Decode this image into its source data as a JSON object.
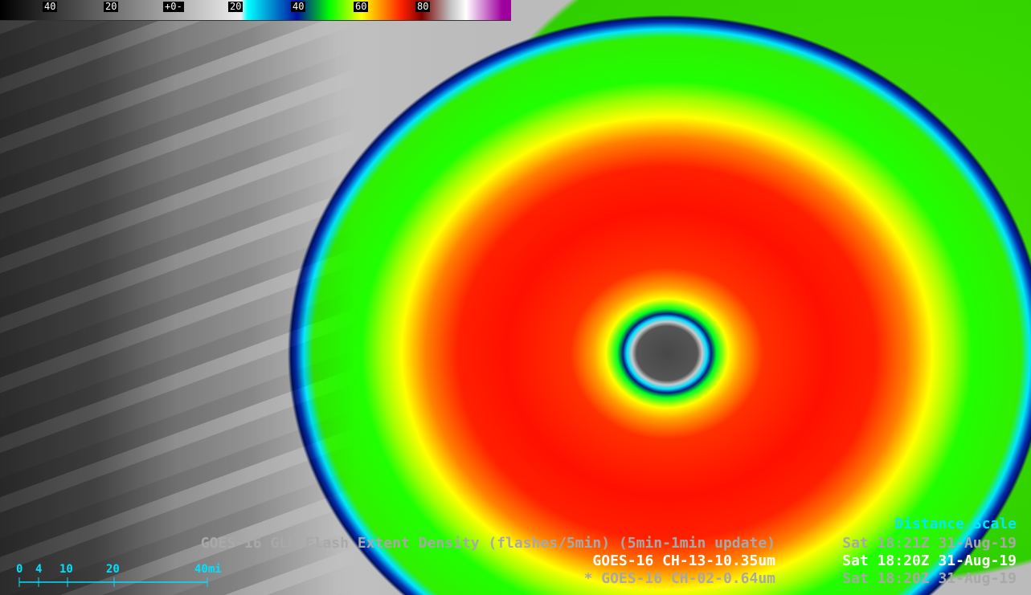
{
  "colorbar": {
    "labels": [
      "40",
      "20",
      "+0-",
      "20",
      "40",
      "60",
      "80"
    ]
  },
  "distance_scale": {
    "title": "Distance Scale",
    "labels": [
      "0",
      "4",
      "10",
      "20",
      "40mi"
    ]
  },
  "captions": [
    {
      "product": "GOES-16 GLM Flash Extent Density (flashes/5min) (5min-1min update)",
      "time": "Sat 18:21Z 31-Aug-19"
    },
    {
      "product": "GOES-16 CH-13-10.35um",
      "time": "Sat 18:20Z 31-Aug-19"
    },
    {
      "product": "* GOES-16 CH-02-0.64um",
      "time": "Sat 18:20Z 31-Aug-19"
    }
  ]
}
